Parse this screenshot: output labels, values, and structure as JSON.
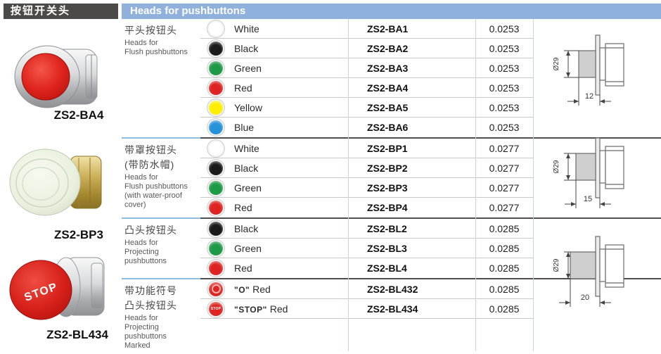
{
  "title_box": {
    "label": "按钮开关头"
  },
  "header_bar": {
    "label": "Heads for pushbuttons"
  },
  "products": [
    {
      "label": "ZS2-BA4",
      "image": "red-flush-pushbutton-photo"
    },
    {
      "label": "ZS2-BP3",
      "image": "waterproof-cover-pushbutton-photo"
    },
    {
      "label": "ZS2-BL434",
      "image": "red-stop-mushroom-pushbutton-photo"
    }
  ],
  "dot_colors": {
    "white": "#ffffff",
    "black": "#1a1a1a",
    "green": "#1d9a47",
    "red": "#dd2422",
    "yellow": "#fdee00",
    "blue": "#2792d9",
    "mark-o": "#dd2422",
    "mark-stop": "#dd2422"
  },
  "table": {
    "sections": [
      {
        "desc_cn": [
          "平头按钮头"
        ],
        "desc_en": [
          "Heads for",
          "Flush pushbuttons"
        ],
        "rows": [
          {
            "dot": "white",
            "label": "White",
            "model": "ZS2-BA1",
            "weight": "0.0253"
          },
          {
            "dot": "black",
            "label": "Black",
            "model": "ZS2-BA2",
            "weight": "0.0253"
          },
          {
            "dot": "green",
            "label": "Green",
            "model": "ZS2-BA3",
            "weight": "0.0253"
          },
          {
            "dot": "red",
            "label": "Red",
            "model": "ZS2-BA4",
            "weight": "0.0253"
          },
          {
            "dot": "yellow",
            "label": "Yellow",
            "model": "ZS2-BA5",
            "weight": "0.0253"
          },
          {
            "dot": "blue",
            "label": "Blue",
            "model": "ZS2-BA6",
            "weight": "0.0253"
          }
        ]
      },
      {
        "desc_cn": [
          "带罩按钮头",
          "(带防水帽)"
        ],
        "desc_en": [
          "Heads for",
          "Flush pushbuttons",
          "(with water-proof",
          "cover)"
        ],
        "rows": [
          {
            "dot": "white",
            "label": "White",
            "model": "ZS2-BP1",
            "weight": "0.0277"
          },
          {
            "dot": "black",
            "label": "Black",
            "model": "ZS2-BP2",
            "weight": "0.0277"
          },
          {
            "dot": "green",
            "label": "Green",
            "model": "ZS2-BP3",
            "weight": "0.0277"
          },
          {
            "dot": "red",
            "label": "Red",
            "model": "ZS2-BP4",
            "weight": "0.0277"
          }
        ]
      },
      {
        "desc_cn": [
          "凸头按钮头"
        ],
        "desc_en": [
          "Heads for",
          "Projecting",
          "pushbuttons"
        ],
        "rows": [
          {
            "dot": "black",
            "label": "Black",
            "model": "ZS2-BL2",
            "weight": "0.0285"
          },
          {
            "dot": "green",
            "label": "Green",
            "model": "ZS2-BL3",
            "weight": "0.0285"
          },
          {
            "dot": "red",
            "label": "Red",
            "model": "ZS2-BL4",
            "weight": "0.0285"
          }
        ]
      },
      {
        "desc_cn": [
          "带功能符号",
          "凸头按钮头"
        ],
        "desc_en": [
          "Heads for",
          "Projecting",
          "pushbuttons",
          "Marked"
        ],
        "rows": [
          {
            "dot": "mark-o",
            "mark": "O",
            "label": "Red",
            "model": "ZS2-BL432",
            "weight": "0.0285"
          },
          {
            "dot": "mark-stop",
            "mark": "STOP",
            "label": "Red",
            "model": "ZS2-BL434",
            "weight": "0.0285"
          }
        ]
      }
    ]
  },
  "drawings": [
    {
      "diameter_label": "Ø29",
      "depth_label": "12"
    },
    {
      "diameter_label": "Ø29",
      "depth_label": "15"
    },
    {
      "diameter_label": "Ø29",
      "depth_label": "20"
    }
  ],
  "colors": {
    "header_blue": "#8fb1dc",
    "title_bg": "#4b4a47",
    "section_divider_dark": "#4f4f4f",
    "section_divider_blue": "#8fbce2",
    "row_line": "#c9c9c9",
    "column_line": "#c2d6ea"
  }
}
